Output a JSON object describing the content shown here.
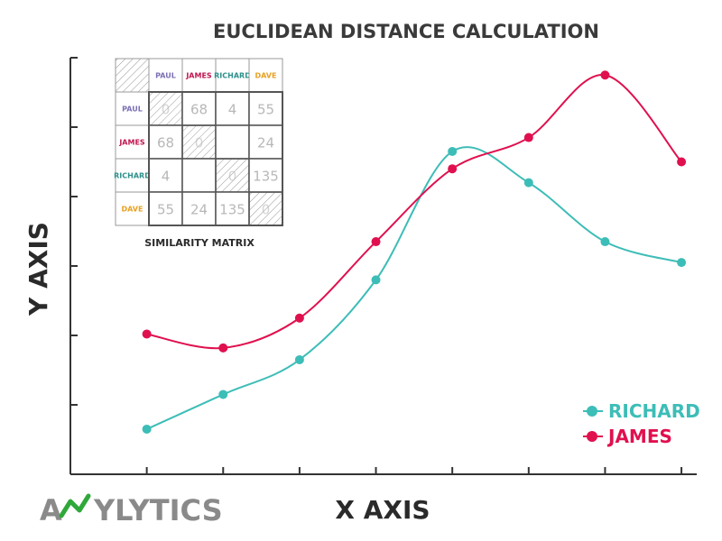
{
  "chart_data": {
    "type": "line",
    "title": "EUCLIDEAN DISTANCE CALCULATION",
    "xlabel": "X AXIS",
    "ylabel": "Y AXIS",
    "x": [
      1,
      2,
      3,
      4,
      5,
      6,
      7,
      8
    ],
    "xlim": [
      0,
      8.2
    ],
    "ylim": [
      0,
      6
    ],
    "grid": false,
    "legend_position": "bottom-right",
    "series": [
      {
        "name": "RICHARD",
        "color": "#3dbdb7",
        "values": [
          0.65,
          1.15,
          1.65,
          2.8,
          4.65,
          4.2,
          3.35,
          3.05
        ]
      },
      {
        "name": "JAMES",
        "color": "#e0104f",
        "values": [
          2.02,
          1.82,
          2.25,
          3.35,
          4.4,
          4.85,
          5.75,
          4.5
        ]
      }
    ]
  },
  "matrix": {
    "caption": "SIMILARITY MATRIX",
    "names": [
      "PAUL",
      "JAMES",
      "RICHARD",
      "DAVE"
    ],
    "name_colors": [
      "#7b6fb3",
      "#c0144f",
      "#2b8f8a",
      "#e8a020"
    ],
    "cells": [
      [
        "0",
        "68",
        "4",
        "55"
      ],
      [
        "68",
        "0",
        "",
        "24"
      ],
      [
        "4",
        "",
        "0",
        "135"
      ],
      [
        "55",
        "24",
        "135",
        "0"
      ]
    ]
  },
  "logo": {
    "prefix": "A",
    "suffix": "YLYTICS",
    "mark_color": "#2fa83a"
  }
}
